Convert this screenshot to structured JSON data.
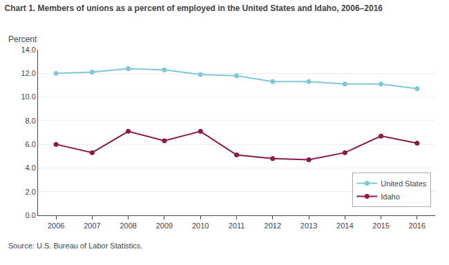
{
  "chart_data": {
    "type": "line",
    "title": "Chart 1. Members of unions as a percent of employed in the United States and Idaho, 2006–2016",
    "ylabel": "Percent",
    "annotations": [
      "Source: U.S. Bureau of Labor Statistics."
    ],
    "x": [
      2006,
      2007,
      2008,
      2009,
      2010,
      2011,
      2012,
      2013,
      2014,
      2015,
      2016
    ],
    "series": [
      {
        "name": "United States",
        "color": "#7ec8d8",
        "marker": "circle",
        "line_style": "solid",
        "values": [
          12.0,
          12.1,
          12.4,
          12.3,
          11.9,
          11.8,
          11.3,
          11.3,
          11.1,
          11.1,
          10.7
        ]
      },
      {
        "name": "Idaho",
        "color": "#8b1a4a",
        "marker": "circle",
        "line_style": "solid",
        "values": [
          6.0,
          5.3,
          7.1,
          6.3,
          7.1,
          5.1,
          4.8,
          4.7,
          5.3,
          6.7,
          6.1
        ]
      }
    ],
    "xlim": [
      2005.5,
      2016.5
    ],
    "xticks": [
      2006,
      2007,
      2008,
      2009,
      2010,
      2011,
      2012,
      2013,
      2014,
      2015,
      2016
    ],
    "ylim": [
      0,
      14.0
    ],
    "yticks": [
      {
        "value": 0.0,
        "label": "0.0"
      },
      {
        "value": 2.0,
        "label": "2.0"
      },
      {
        "value": 4.0,
        "label": "4.0"
      },
      {
        "value": 6.0,
        "label": "6.0"
      },
      {
        "value": 8.0,
        "label": "8.0"
      },
      {
        "value": 10.0,
        "label": "10.0"
      },
      {
        "value": 12.0,
        "label": "12.0"
      },
      {
        "value": 14.0,
        "label": "14.0"
      }
    ],
    "grid": "y",
    "legend": "lower right"
  }
}
